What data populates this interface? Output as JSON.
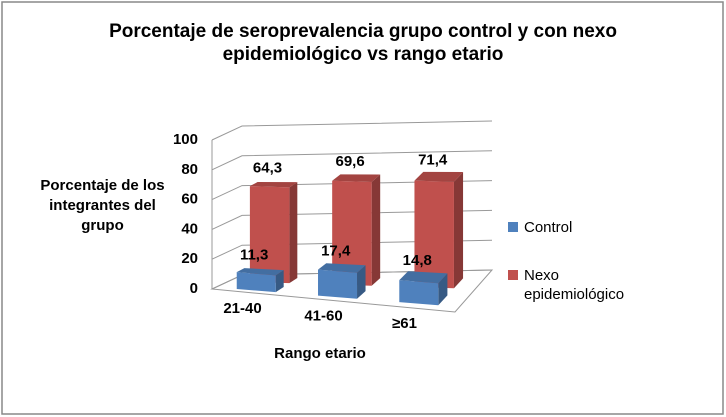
{
  "chart_data": {
    "type": "bar",
    "title": "Porcentaje de seroprevalencia grupo control y con nexo epidemiológico  vs rango etario",
    "xlabel": "Rango etario",
    "ylabel": "Porcentaje de los integrantes del grupo",
    "categories": [
      "21-40",
      "41-60",
      "≥61"
    ],
    "series": [
      {
        "name": "Control",
        "color": "#4f81bd",
        "values": [
          11.3,
          17.4,
          14.8
        ],
        "value_labels": [
          "11,3",
          "17,4",
          "14,8"
        ]
      },
      {
        "name": "Nexo epidemiológico",
        "color": "#c0504d",
        "values": [
          64.3,
          69.6,
          71.4
        ],
        "value_labels": [
          "64,3",
          "69,6",
          "71,4"
        ]
      }
    ],
    "ylim": [
      0,
      100
    ],
    "yticks": [
      0,
      20,
      40,
      60,
      80,
      100
    ],
    "grid": true,
    "legend": "right"
  }
}
